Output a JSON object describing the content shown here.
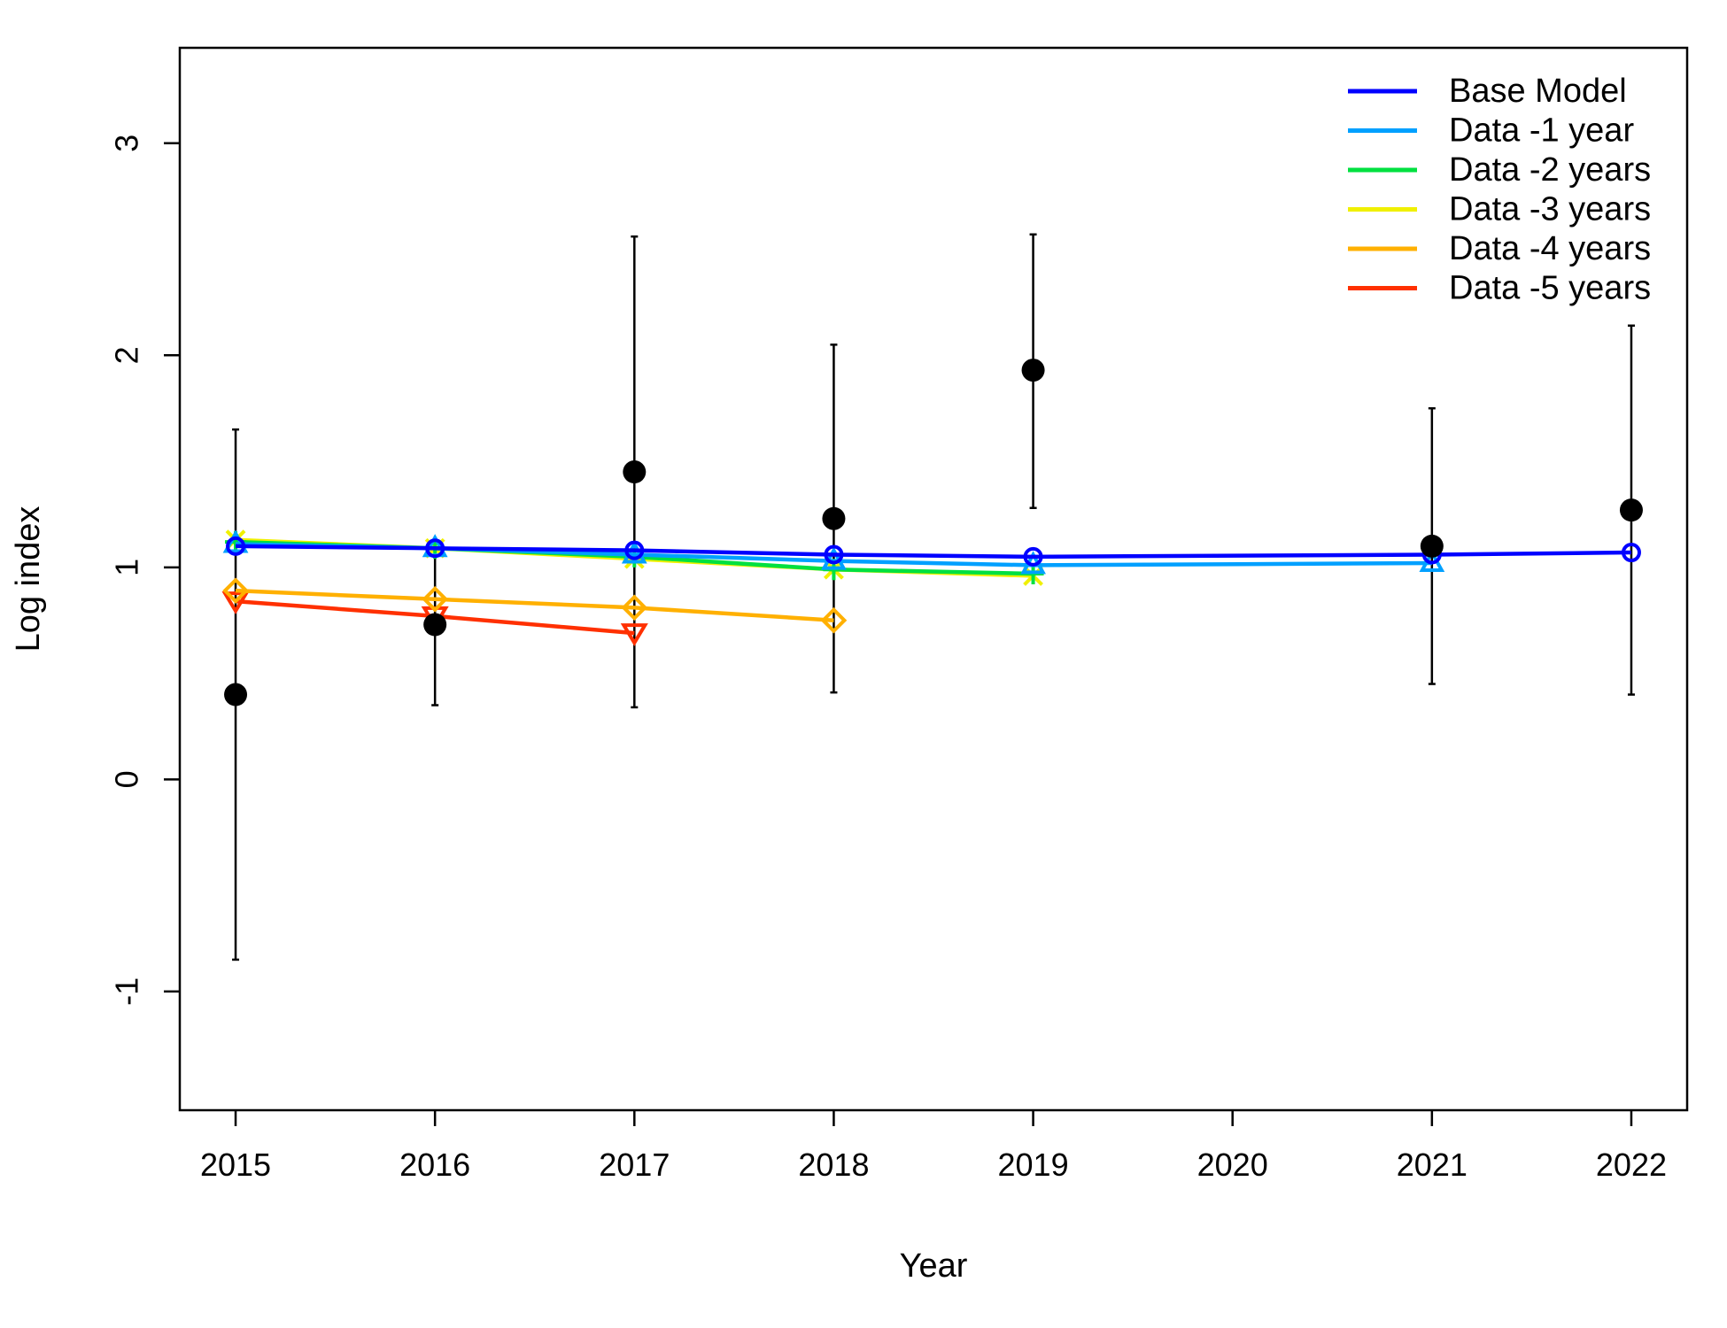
{
  "chart_data": {
    "type": "line",
    "title": "",
    "xlabel": "Year",
    "ylabel": "Log index",
    "xlim": [
      2014.72,
      2022.28
    ],
    "ylim": [
      -1.56,
      3.45
    ],
    "x_ticks": [
      "2015",
      "2016",
      "2017",
      "2018",
      "2019",
      "2020",
      "2021",
      "2022"
    ],
    "y_ticks": [
      "-1",
      "0",
      "1",
      "2",
      "3"
    ],
    "legend_position": "top-right",
    "observed": {
      "marker": "filled-circle",
      "color": "#000000",
      "points": [
        {
          "x": 2015,
          "y": 0.4,
          "lo": -0.85,
          "hi": 1.65
        },
        {
          "x": 2016,
          "y": 0.73,
          "lo": 0.35,
          "hi": 1.11
        },
        {
          "x": 2017,
          "y": 1.45,
          "lo": 0.34,
          "hi": 2.56
        },
        {
          "x": 2018,
          "y": 1.23,
          "lo": 0.41,
          "hi": 2.05
        },
        {
          "x": 2019,
          "y": 1.93,
          "lo": 1.28,
          "hi": 2.57
        },
        {
          "x": 2021,
          "y": 1.1,
          "lo": 0.45,
          "hi": 1.75
        },
        {
          "x": 2022,
          "y": 1.27,
          "lo": 0.4,
          "hi": 2.14
        }
      ]
    },
    "series": [
      {
        "name": "Base Model",
        "color": "#0000ff",
        "marker": "circle",
        "x": [
          2015,
          2016,
          2017,
          2018,
          2019,
          2021,
          2022
        ],
        "y": [
          1.1,
          1.09,
          1.08,
          1.06,
          1.05,
          1.06,
          1.07
        ]
      },
      {
        "name": "Data -1 year",
        "color": "#00a0ff",
        "marker": "triangle-up",
        "x": [
          2015,
          2016,
          2017,
          2018,
          2019,
          2021
        ],
        "y": [
          1.11,
          1.09,
          1.06,
          1.03,
          1.01,
          1.02
        ]
      },
      {
        "name": "Data -2 years",
        "color": "#00e040",
        "marker": "plus",
        "x": [
          2015,
          2016,
          2017,
          2018,
          2019
        ],
        "y": [
          1.12,
          1.09,
          1.05,
          0.99,
          0.97
        ]
      },
      {
        "name": "Data -3 years",
        "color": "#f0f000",
        "marker": "cross",
        "x": [
          2015,
          2016,
          2017,
          2018,
          2019
        ],
        "y": [
          1.13,
          1.09,
          1.04,
          0.99,
          0.96
        ]
      },
      {
        "name": "Data -4 years",
        "color": "#ffb000",
        "marker": "diamond",
        "x": [
          2015,
          2016,
          2017,
          2018
        ],
        "y": [
          0.89,
          0.85,
          0.81,
          0.75
        ]
      },
      {
        "name": "Data -5 years",
        "color": "#ff3000",
        "marker": "triangle-down",
        "x": [
          2015,
          2016,
          2017
        ],
        "y": [
          0.84,
          0.77,
          0.69
        ]
      }
    ]
  }
}
